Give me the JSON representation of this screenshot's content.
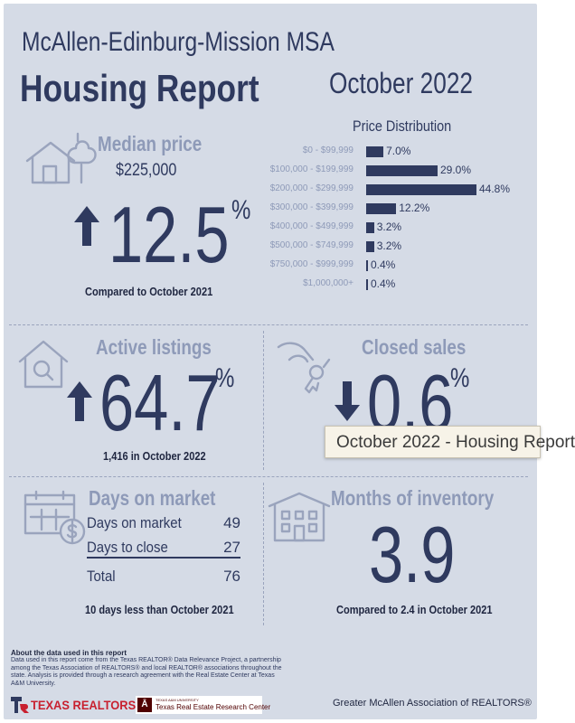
{
  "header": {
    "region": "McAllen-Edinburg-Mission MSA",
    "title": "Housing Report",
    "period": "October 2022"
  },
  "median_price": {
    "label": "Median price",
    "value": "$225,000",
    "change": "12.5",
    "unit": "%",
    "direction": "up",
    "comparison": "Compared to October 2021"
  },
  "price_distribution": {
    "title": "Price Distribution",
    "rows": [
      {
        "range": "$0 - $99,999",
        "pct": 7.0,
        "label": "7.0%"
      },
      {
        "range": "$100,000 - $199,999",
        "pct": 29.0,
        "label": "29.0%"
      },
      {
        "range": "$200,000 - $299,999",
        "pct": 44.8,
        "label": "44.8%"
      },
      {
        "range": "$300,000 - $399,999",
        "pct": 12.2,
        "label": "12.2%"
      },
      {
        "range": "$400,000 - $499,999",
        "pct": 3.2,
        "label": "3.2%"
      },
      {
        "range": "$500,000 - $749,999",
        "pct": 3.2,
        "label": "3.2%"
      },
      {
        "range": "$750,000 - $999,999",
        "pct": 0.4,
        "label": "0.4%"
      },
      {
        "range": "$1,000,000+",
        "pct": 0.4,
        "label": "0.4%"
      }
    ]
  },
  "active_listings": {
    "label": "Active listings",
    "change": "64.7",
    "unit": "%",
    "direction": "up",
    "detail": "1,416 in October 2022"
  },
  "closed_sales": {
    "label": "Closed sales",
    "change": "0.6",
    "unit": "%",
    "direction": "down"
  },
  "days_on_market": {
    "label": "Days on market",
    "rows": [
      {
        "label": "Days on market",
        "value": "49"
      },
      {
        "label": "Days to close",
        "value": "27"
      }
    ],
    "total_label": "Total",
    "total_value": "76",
    "comparison": "10 days less than October 2021"
  },
  "months_inventory": {
    "label": "Months of inventory",
    "value": "3.9",
    "comparison": "Compared to 2.4 in October 2021"
  },
  "about": {
    "heading": "About the data used in this report",
    "text": "Data used in this report come from the Texas REALTOR® Data Relevance Project, a partnership among the Texas Association of REALTORS® and local REALTOR® associations throughout the state. Analysis is provided through a research agreement with the Real Estate Center at Texas A&M University."
  },
  "footer": {
    "texas_realtors": "TEXAS REALTORS",
    "tamu_small": "TEXAS A&M UNIVERSITY",
    "tamu_center": "Texas Real Estate Research Center",
    "association": "Greater McAllen Association of REALTORS®"
  },
  "tooltip": {
    "text": "October 2022 - Housing Report"
  },
  "colors": {
    "navy": "#2f3a5f",
    "slate": "#8e9ab8",
    "background": "#d5dbe6",
    "texas_red": "#c8202f",
    "tamu_maroon": "#500000"
  }
}
